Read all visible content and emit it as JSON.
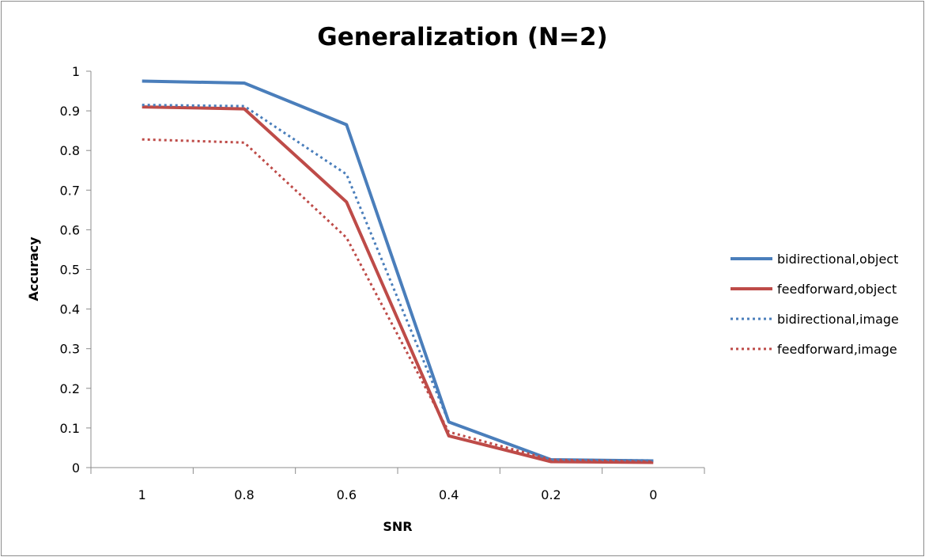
{
  "chart_data": {
    "type": "line",
    "title": "Generalization (N=2)",
    "xlabel": "SNR",
    "ylabel": "Accuracy",
    "categories": [
      "1",
      "0.8",
      "0.6",
      "0.4",
      "0.2",
      "0"
    ],
    "yticks": [
      "0",
      "0.1",
      "0.2",
      "0.3",
      "0.4",
      "0.5",
      "0.6",
      "0.7",
      "0.8",
      "0.9",
      "1"
    ],
    "ylim": [
      0,
      1
    ],
    "grid": false,
    "legend_position": "right",
    "series": [
      {
        "name": "bidirectional,object",
        "color": "#4a7ebb",
        "dash": "solid",
        "values": [
          0.975,
          0.97,
          0.865,
          0.115,
          0.02,
          0.017
        ]
      },
      {
        "name": "feedforward,object",
        "color": "#be4b48",
        "dash": "solid",
        "values": [
          0.91,
          0.905,
          0.67,
          0.08,
          0.015,
          0.013
        ]
      },
      {
        "name": "bidirectional,image",
        "color": "#4a7ebb",
        "dash": "dotted",
        "values": [
          0.915,
          0.912,
          0.74,
          0.115,
          0.02,
          0.018
        ]
      },
      {
        "name": "feedforward,image",
        "color": "#be4b48",
        "dash": "dotted",
        "values": [
          0.828,
          0.82,
          0.58,
          0.09,
          0.02,
          0.015
        ]
      }
    ]
  }
}
